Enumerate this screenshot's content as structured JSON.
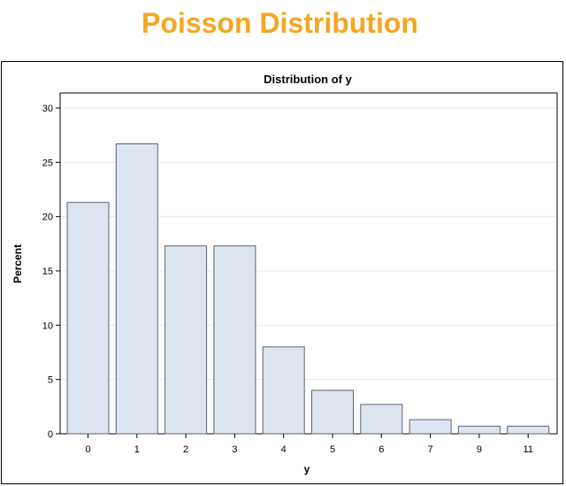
{
  "header": {
    "title": "Poisson Distribution"
  },
  "colors": {
    "title": "#f5a623",
    "bar_fill": "#dde6f0",
    "bar_stroke": "#5a6470",
    "grid": "#e8e8e8"
  },
  "chart_data": {
    "type": "bar",
    "title": "Distribution of y",
    "xlabel": "y",
    "ylabel": "Percent",
    "categories": [
      "0",
      "1",
      "2",
      "3",
      "4",
      "5",
      "6",
      "7",
      "9",
      "11"
    ],
    "values": [
      21.3,
      26.7,
      17.3,
      17.3,
      8.0,
      4.0,
      2.7,
      1.3,
      0.7,
      0.7
    ],
    "ylim": [
      0,
      30
    ],
    "yticks": [
      0,
      5,
      10,
      15,
      20,
      25,
      30
    ],
    "grid": true
  }
}
